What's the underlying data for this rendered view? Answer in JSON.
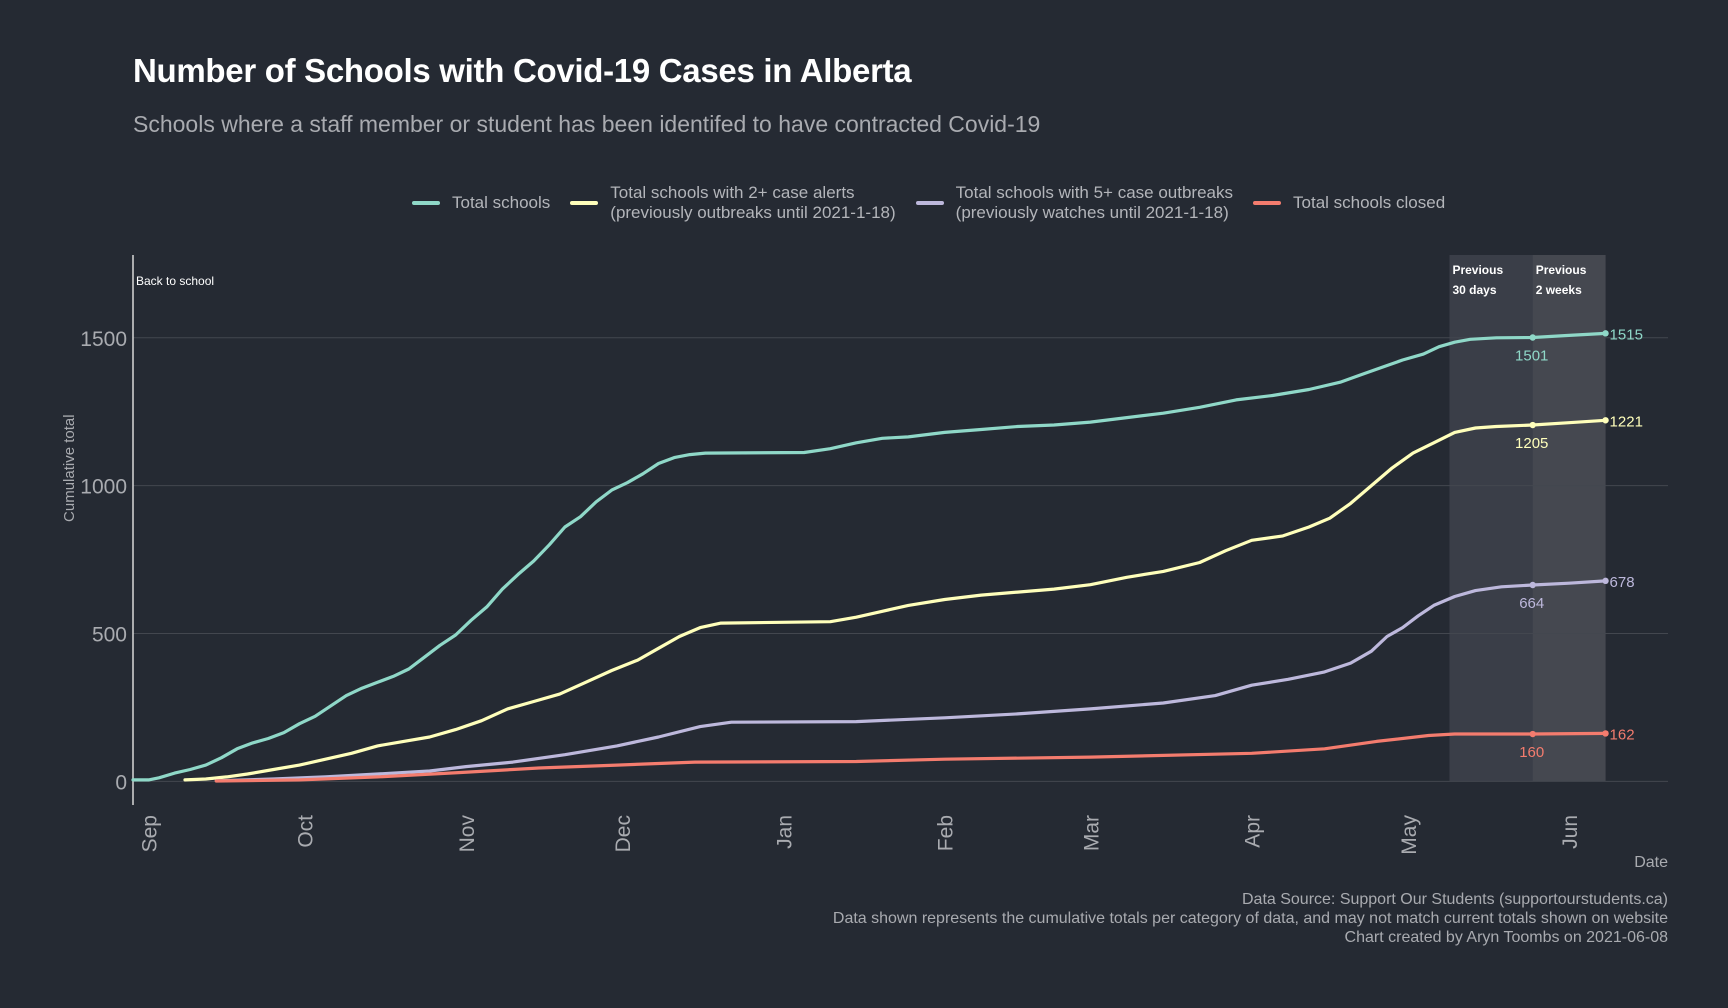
{
  "chart_data": {
    "type": "line",
    "title": "Number of Schools with Covid-19 Cases in Alberta",
    "subtitle": "Schools where a staff member or student has been identifed to have contracted Covid-19",
    "xlabel": "Date",
    "ylabel": "Cumulative total",
    "x_ticks": [
      "Sep",
      "Oct",
      "Nov",
      "Dec",
      "Jan",
      "Feb",
      "Mar",
      "Apr",
      "May",
      "Jun"
    ],
    "x_tick_dates": [
      "2020-09-01",
      "2020-10-01",
      "2020-11-01",
      "2020-12-01",
      "2021-01-01",
      "2021-02-01",
      "2021-03-01",
      "2021-04-01",
      "2021-05-01",
      "2021-06-01"
    ],
    "xlim": [
      "2020-08-29",
      "2021-06-20"
    ],
    "y_ticks": [
      0,
      500,
      1000,
      1500
    ],
    "ylim": [
      -80,
      1780
    ],
    "grid": true,
    "legend_position": "top",
    "annotations": {
      "back_to_school": {
        "label": "Back to school",
        "date": "2020-08-29"
      },
      "previous_30_days": {
        "label": "Previous\n30 days",
        "start": "2021-05-09",
        "end": "2021-06-08"
      },
      "previous_2_weeks": {
        "label": "Previous\n2 weeks",
        "start": "2021-05-25",
        "end": "2021-06-08"
      }
    },
    "series": [
      {
        "name": "Total schools",
        "color": "#8fd8c8",
        "points": [
          [
            "2020-08-29",
            5
          ],
          [
            "2020-09-01",
            5
          ],
          [
            "2020-09-03",
            12
          ],
          [
            "2020-09-06",
            28
          ],
          [
            "2020-09-09",
            40
          ],
          [
            "2020-09-12",
            55
          ],
          [
            "2020-09-15",
            80
          ],
          [
            "2020-09-18",
            110
          ],
          [
            "2020-09-21",
            130
          ],
          [
            "2020-09-24",
            145
          ],
          [
            "2020-09-27",
            165
          ],
          [
            "2020-09-30",
            195
          ],
          [
            "2020-10-03",
            220
          ],
          [
            "2020-10-06",
            255
          ],
          [
            "2020-10-09",
            290
          ],
          [
            "2020-10-12",
            315
          ],
          [
            "2020-10-15",
            335
          ],
          [
            "2020-10-18",
            355
          ],
          [
            "2020-10-21",
            380
          ],
          [
            "2020-10-24",
            420
          ],
          [
            "2020-10-27",
            460
          ],
          [
            "2020-10-30",
            495
          ],
          [
            "2020-11-02",
            545
          ],
          [
            "2020-11-05",
            590
          ],
          [
            "2020-11-08",
            650
          ],
          [
            "2020-11-11",
            700
          ],
          [
            "2020-11-14",
            745
          ],
          [
            "2020-11-17",
            800
          ],
          [
            "2020-11-20",
            860
          ],
          [
            "2020-11-23",
            895
          ],
          [
            "2020-11-26",
            945
          ],
          [
            "2020-11-29",
            985
          ],
          [
            "2020-12-02",
            1010
          ],
          [
            "2020-12-05",
            1040
          ],
          [
            "2020-12-08",
            1075
          ],
          [
            "2020-12-11",
            1095
          ],
          [
            "2020-12-14",
            1105
          ],
          [
            "2020-12-17",
            1110
          ],
          [
            "2021-01-05",
            1112
          ],
          [
            "2021-01-10",
            1125
          ],
          [
            "2021-01-15",
            1145
          ],
          [
            "2021-01-20",
            1160
          ],
          [
            "2021-01-25",
            1165
          ],
          [
            "2021-02-01",
            1180
          ],
          [
            "2021-02-08",
            1190
          ],
          [
            "2021-02-15",
            1200
          ],
          [
            "2021-02-22",
            1205
          ],
          [
            "2021-03-01",
            1215
          ],
          [
            "2021-03-08",
            1230
          ],
          [
            "2021-03-15",
            1245
          ],
          [
            "2021-03-22",
            1265
          ],
          [
            "2021-03-29",
            1290
          ],
          [
            "2021-04-05",
            1305
          ],
          [
            "2021-04-12",
            1325
          ],
          [
            "2021-04-18",
            1350
          ],
          [
            "2021-04-22",
            1375
          ],
          [
            "2021-04-26",
            1400
          ],
          [
            "2021-04-30",
            1425
          ],
          [
            "2021-05-04",
            1445
          ],
          [
            "2021-05-07",
            1470
          ],
          [
            "2021-05-10",
            1485
          ],
          [
            "2021-05-13",
            1495
          ],
          [
            "2021-05-18",
            1500
          ],
          [
            "2021-05-25",
            1501
          ],
          [
            "2021-06-01",
            1508
          ],
          [
            "2021-06-08",
            1515
          ]
        ],
        "labels": [
          {
            "date": "2021-05-25",
            "value": 1501,
            "text": "1501"
          },
          {
            "date": "2021-06-08",
            "value": 1515,
            "text": "1515"
          }
        ]
      },
      {
        "name": "Total schools with 2+ case alerts\n(previously outbreaks until 2021-1-18)",
        "color": "#ffffbb",
        "points": [
          [
            "2020-09-08",
            5
          ],
          [
            "2020-09-12",
            8
          ],
          [
            "2020-09-16",
            15
          ],
          [
            "2020-09-20",
            25
          ],
          [
            "2020-09-25",
            40
          ],
          [
            "2020-09-30",
            55
          ],
          [
            "2020-10-05",
            75
          ],
          [
            "2020-10-10",
            95
          ],
          [
            "2020-10-15",
            120
          ],
          [
            "2020-10-20",
            135
          ],
          [
            "2020-10-25",
            150
          ],
          [
            "2020-10-30",
            175
          ],
          [
            "2020-11-04",
            205
          ],
          [
            "2020-11-09",
            245
          ],
          [
            "2020-11-14",
            270
          ],
          [
            "2020-11-19",
            295
          ],
          [
            "2020-11-24",
            335
          ],
          [
            "2020-11-29",
            375
          ],
          [
            "2020-12-04",
            410
          ],
          [
            "2020-12-08",
            450
          ],
          [
            "2020-12-12",
            490
          ],
          [
            "2020-12-16",
            520
          ],
          [
            "2020-12-20",
            535
          ],
          [
            "2021-01-10",
            540
          ],
          [
            "2021-01-15",
            555
          ],
          [
            "2021-01-20",
            575
          ],
          [
            "2021-01-25",
            595
          ],
          [
            "2021-02-01",
            615
          ],
          [
            "2021-02-08",
            630
          ],
          [
            "2021-02-15",
            640
          ],
          [
            "2021-02-22",
            650
          ],
          [
            "2021-03-01",
            665
          ],
          [
            "2021-03-08",
            690
          ],
          [
            "2021-03-15",
            710
          ],
          [
            "2021-03-22",
            740
          ],
          [
            "2021-03-27",
            780
          ],
          [
            "2021-04-01",
            815
          ],
          [
            "2021-04-07",
            830
          ],
          [
            "2021-04-12",
            860
          ],
          [
            "2021-04-16",
            890
          ],
          [
            "2021-04-20",
            940
          ],
          [
            "2021-04-24",
            1000
          ],
          [
            "2021-04-28",
            1060
          ],
          [
            "2021-05-02",
            1110
          ],
          [
            "2021-05-06",
            1145
          ],
          [
            "2021-05-10",
            1180
          ],
          [
            "2021-05-14",
            1195
          ],
          [
            "2021-05-18",
            1200
          ],
          [
            "2021-05-25",
            1205
          ],
          [
            "2021-06-01",
            1213
          ],
          [
            "2021-06-08",
            1221
          ]
        ],
        "labels": [
          {
            "date": "2021-05-25",
            "value": 1205,
            "text": "1205"
          },
          {
            "date": "2021-06-08",
            "value": 1221,
            "text": "1221"
          }
        ]
      },
      {
        "name": "Total schools with 5+ case outbreaks\n(previously watches until 2021-1-18)",
        "color": "#bdb8dc",
        "points": [
          [
            "2020-09-14",
            2
          ],
          [
            "2020-09-25",
            8
          ],
          [
            "2020-10-05",
            15
          ],
          [
            "2020-10-15",
            25
          ],
          [
            "2020-10-25",
            35
          ],
          [
            "2020-11-01",
            50
          ],
          [
            "2020-11-10",
            65
          ],
          [
            "2020-11-20",
            90
          ],
          [
            "2020-11-30",
            120
          ],
          [
            "2020-12-08",
            150
          ],
          [
            "2020-12-16",
            185
          ],
          [
            "2020-12-22",
            200
          ],
          [
            "2021-01-15",
            202
          ],
          [
            "2021-02-01",
            215
          ],
          [
            "2021-02-15",
            228
          ],
          [
            "2021-03-01",
            245
          ],
          [
            "2021-03-15",
            265
          ],
          [
            "2021-03-25",
            290
          ],
          [
            "2021-04-01",
            325
          ],
          [
            "2021-04-08",
            345
          ],
          [
            "2021-04-15",
            370
          ],
          [
            "2021-04-20",
            400
          ],
          [
            "2021-04-24",
            440
          ],
          [
            "2021-04-27",
            490
          ],
          [
            "2021-04-30",
            520
          ],
          [
            "2021-05-03",
            560
          ],
          [
            "2021-05-06",
            595
          ],
          [
            "2021-05-10",
            625
          ],
          [
            "2021-05-14",
            645
          ],
          [
            "2021-05-19",
            658
          ],
          [
            "2021-05-25",
            664
          ],
          [
            "2021-06-01",
            670
          ],
          [
            "2021-06-08",
            678
          ]
        ],
        "labels": [
          {
            "date": "2021-05-25",
            "value": 664,
            "text": "664"
          },
          {
            "date": "2021-06-08",
            "value": 678,
            "text": "678"
          }
        ]
      },
      {
        "name": "Total schools closed",
        "color": "#f47c6e",
        "points": [
          [
            "2020-09-14",
            1
          ],
          [
            "2020-09-30",
            5
          ],
          [
            "2020-10-15",
            15
          ],
          [
            "2020-10-31",
            30
          ],
          [
            "2020-11-15",
            45
          ],
          [
            "2020-11-30",
            55
          ],
          [
            "2020-12-15",
            65
          ],
          [
            "2021-01-15",
            67
          ],
          [
            "2021-02-01",
            75
          ],
          [
            "2021-03-01",
            82
          ],
          [
            "2021-04-01",
            95
          ],
          [
            "2021-04-15",
            110
          ],
          [
            "2021-04-25",
            135
          ],
          [
            "2021-05-05",
            155
          ],
          [
            "2021-05-10",
            160
          ],
          [
            "2021-05-25",
            160
          ],
          [
            "2021-06-08",
            162
          ]
        ],
        "labels": [
          {
            "date": "2021-05-25",
            "value": 160,
            "text": "160"
          },
          {
            "date": "2021-06-08",
            "value": 162,
            "text": "162"
          }
        ]
      }
    ]
  },
  "footer": {
    "line1": "Data Source: Support Our Students (supportourstudents.ca)",
    "line2": "Data shown represents the cumulative totals per category of data, and may not match current totals shown on website",
    "line3": "Chart created by Aryn Toombs on 2021-06-08"
  }
}
